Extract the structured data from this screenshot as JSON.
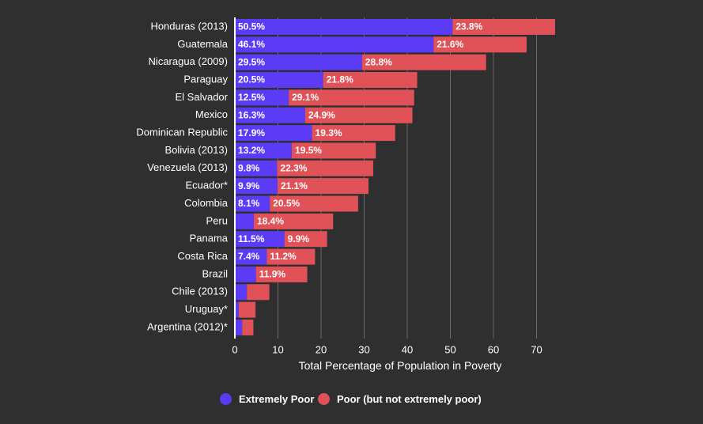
{
  "chart_data": {
    "type": "bar",
    "orientation": "horizontal",
    "stacked": true,
    "xlabel": "Total Percentage of Population in Poverty",
    "xlim": [
      0,
      75
    ],
    "xticks": [
      0,
      10,
      20,
      30,
      40,
      50,
      60,
      70
    ],
    "grid": true,
    "legend_position": "bottom",
    "categories": [
      "Honduras (2013)",
      "Guatemala",
      "Nicaragua (2009)",
      "Paraguay",
      "El Salvador",
      "Mexico",
      "Dominican Republic",
      "Bolivia (2013)",
      "Venezuela (2013)",
      "Ecuador*",
      "Colombia",
      "Peru",
      "Panama",
      "Costa Rica",
      "Brazil",
      "Chile (2013)",
      "Uruguay*",
      "Argentina (2012)*"
    ],
    "series": [
      {
        "name": "Extremely Poor",
        "color": "#5b3bf5",
        "values": [
          50.5,
          46.1,
          29.5,
          20.5,
          12.5,
          16.3,
          17.9,
          13.2,
          9.8,
          9.9,
          8.1,
          4.4,
          11.5,
          7.4,
          4.9,
          2.8,
          0.9,
          1.7
        ],
        "labels": [
          "50.5%",
          "46.1%",
          "29.5%",
          "20.5%",
          "12.5%",
          "16.3%",
          "17.9%",
          "13.2%",
          "9.8%",
          "9.9%",
          "8.1%",
          "",
          "11.5%",
          "7.4%",
          "",
          "",
          "",
          ""
        ]
      },
      {
        "name": "Poor (but not extremely poor)",
        "color": "#e05258",
        "values": [
          23.8,
          21.6,
          28.8,
          21.8,
          29.1,
          24.9,
          19.3,
          19.5,
          22.3,
          21.1,
          20.5,
          18.4,
          9.9,
          11.2,
          11.9,
          5.2,
          3.9,
          2.6
        ],
        "labels": [
          "23.8%",
          "21.6%",
          "28.8%",
          "21.8%",
          "29.1%",
          "24.9%",
          "19.3%",
          "19.5%",
          "22.3%",
          "21.1%",
          "20.5%",
          "18.4%",
          "9.9%",
          "11.2%",
          "11.9%",
          "",
          "",
          ""
        ]
      }
    ]
  },
  "colors": {
    "background": "#2f2f2f",
    "gridline": "#6a6a6a",
    "axis": "#ffffff",
    "text": "#ffffff"
  }
}
